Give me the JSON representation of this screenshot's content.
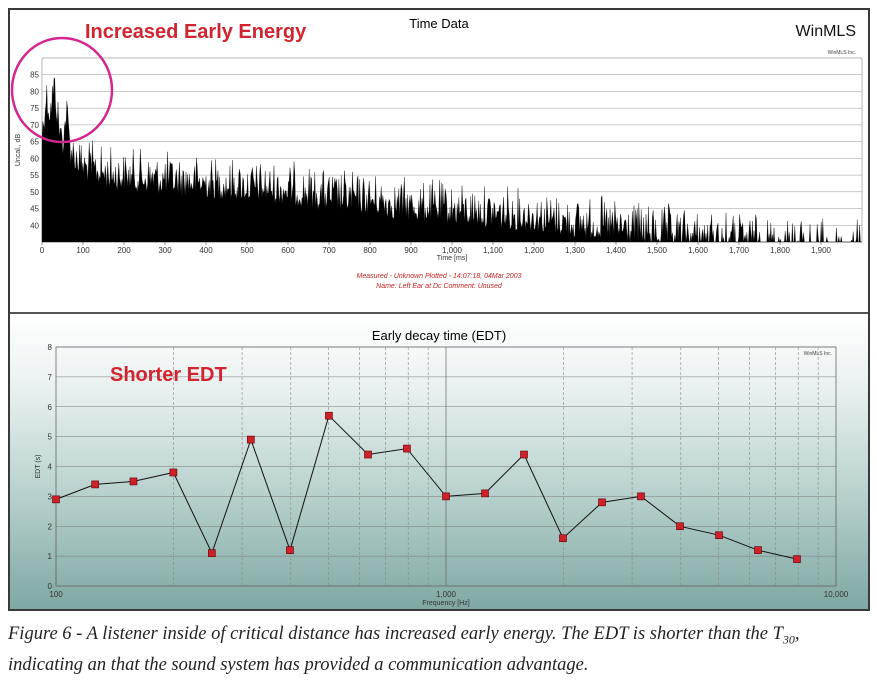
{
  "chart_data": [
    {
      "type": "area",
      "title": "Time Data",
      "brand": "WinMLS",
      "watermark": "WinMLS Inc.",
      "annotation": "Increased Early Energy",
      "xlabel": "Time [ms]",
      "ylabel": "Uncal., dB",
      "xlim": [
        0,
        2000
      ],
      "ylim": [
        35,
        90
      ],
      "xticks": [
        "0",
        "100",
        "200",
        "300",
        "400",
        "500",
        "600",
        "700",
        "800",
        "900",
        "1,000",
        "1,100",
        "1,200",
        "1,300",
        "1,400",
        "1,500",
        "1,600",
        "1,700",
        "1,800",
        "1,900"
      ],
      "yticks": [
        "40",
        "45",
        "50",
        "55",
        "60",
        "65",
        "70",
        "75",
        "80",
        "85"
      ],
      "envelope": {
        "x": [
          0,
          10,
          20,
          30,
          40,
          50,
          60,
          70,
          80,
          100,
          150,
          200,
          300,
          400,
          500,
          600,
          700,
          800,
          900,
          1000,
          1100,
          1200,
          1300,
          1400,
          1500,
          1600,
          1700,
          1800,
          1900,
          2000
        ],
        "y": [
          76,
          88,
          83,
          91,
          80,
          74,
          83,
          72,
          70,
          67,
          65,
          64,
          63,
          62,
          61,
          60,
          58,
          57,
          55,
          54,
          53,
          52,
          50,
          49,
          47,
          46,
          45,
          44,
          43,
          42
        ]
      },
      "info_lines": [
        "Measured - Unknown     Plotted - 14:07:18, 04Mar 2003",
        "Name: Left Ear at Dc     Comment: Unused"
      ],
      "grid": true,
      "colors": {
        "fill": "#000000",
        "annotation": "#d1242f",
        "circle": "#d4268f",
        "info": "#cc2222"
      }
    },
    {
      "type": "line",
      "title": "Early decay time (EDT)",
      "watermark": "WinMLS Inc.",
      "annotation": "Shorter EDT",
      "xlabel": "Frequency [Hz]",
      "ylabel": "EDT (s)",
      "xscale": "log",
      "xlim": [
        100,
        10000
      ],
      "ylim": [
        0,
        8
      ],
      "xticks": [
        "100",
        "1,000",
        "10,000"
      ],
      "yticks": [
        "0",
        "1",
        "2",
        "3",
        "4",
        "5",
        "6",
        "7",
        "8"
      ],
      "x": [
        100,
        126,
        158,
        200,
        251,
        316,
        398,
        501,
        631,
        794,
        1000,
        1259,
        1585,
        1995,
        2512,
        3162,
        3981,
        5012,
        6310,
        7943
      ],
      "y": [
        2.9,
        3.4,
        3.5,
        3.8,
        1.1,
        4.9,
        1.2,
        5.7,
        4.4,
        4.6,
        3.0,
        3.1,
        4.4,
        1.6,
        2.8,
        3.0,
        2.0,
        1.7,
        1.2,
        0.9
      ],
      "grid": true,
      "colors": {
        "line": "#111111",
        "marker": "#d0202a",
        "annotation": "#d1242f"
      }
    }
  ],
  "caption": {
    "main": "Figure 6 - A listener inside of critical distance has increased early energy. The EDT is shorter than the T",
    "subscript": "30",
    "rest": ", indicating an that the sound system has provided a communication advantage."
  }
}
